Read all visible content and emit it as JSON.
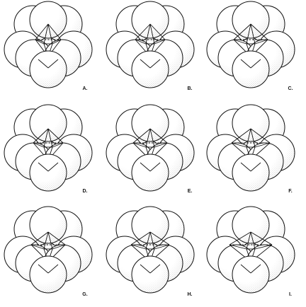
{
  "panels": [
    {
      "id": "A",
      "label": "A."
    },
    {
      "id": "B",
      "label": "B."
    },
    {
      "id": "C",
      "label": "C."
    },
    {
      "id": "D",
      "label": "D."
    },
    {
      "id": "E",
      "label": "E."
    },
    {
      "id": "F",
      "label": "F."
    },
    {
      "id": "G",
      "label": "G."
    },
    {
      "id": "H",
      "label": "H."
    },
    {
      "id": "I",
      "label": "I."
    }
  ],
  "colors": {
    "ink": "#111111",
    "sphere_fill": "#ffffff",
    "shading": "#9a9a9a"
  }
}
